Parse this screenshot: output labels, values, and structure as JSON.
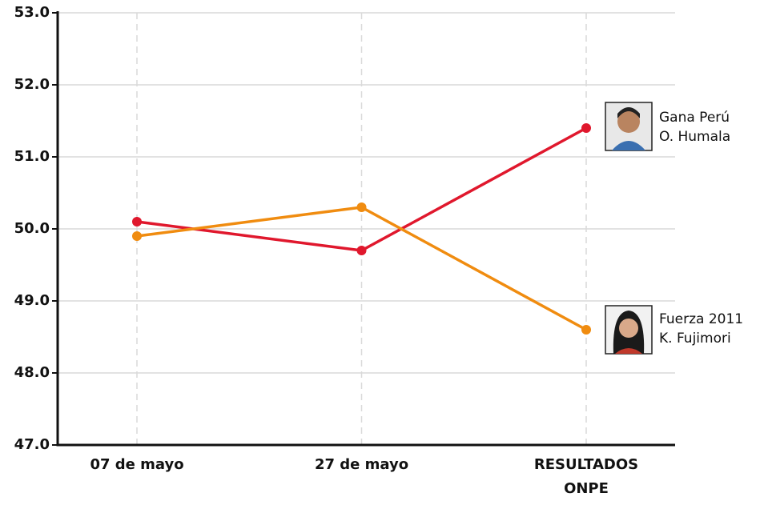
{
  "chart_data": {
    "type": "line",
    "categories": [
      "07 de mayo",
      "27 de mayo",
      "RESULTADOS ONPE"
    ],
    "series": [
      {
        "name": "Gana Perú",
        "candidate": "O. Humala",
        "color": "#e0182d",
        "values": [
          50.1,
          49.7,
          51.4
        ]
      },
      {
        "name": "Fuerza 2011",
        "candidate": "K. Fujimori",
        "color": "#f08c10",
        "values": [
          49.9,
          50.3,
          48.6
        ]
      }
    ],
    "ylim": [
      47,
      53
    ],
    "yticks": [
      {
        "value": 47,
        "label": "47.0"
      },
      {
        "value": 48,
        "label": "48.0"
      },
      {
        "value": 49,
        "label": "49.0"
      },
      {
        "value": 50,
        "label": "50.0"
      },
      {
        "value": 51,
        "label": "51.0"
      },
      {
        "value": 52,
        "label": "52.0"
      },
      {
        "value": 53,
        "label": "53.0"
      }
    ],
    "grid": true
  }
}
